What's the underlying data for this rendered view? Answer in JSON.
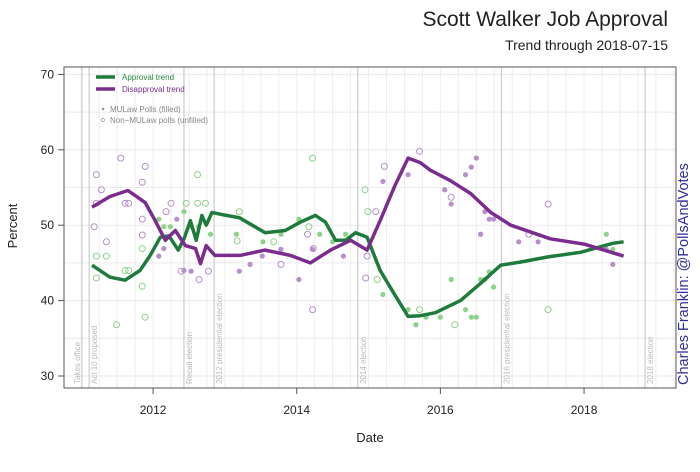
{
  "chart_data": {
    "type": "line",
    "title": "Scott Walker Job Approval",
    "subtitle": "Trend through 2018-07-15",
    "xlabel": "Date",
    "ylabel": "Percent",
    "credit": "Charles Franklin: @PollsAndVotes",
    "xlim": [
      2010.76,
      2019.28
    ],
    "ylim": [
      30,
      70
    ],
    "x_ticks": [
      2012,
      2014,
      2016,
      2018
    ],
    "x_tick_labels": [
      "2012",
      "2014",
      "2016",
      "2018"
    ],
    "y_ticks": [
      30,
      40,
      50,
      60,
      70
    ],
    "y_tick_labels": [
      "30",
      "40",
      "50",
      "60",
      "70"
    ],
    "grid": true,
    "legend_position": "top-left",
    "legend": {
      "approval": "Approval trend",
      "disapproval": "Disapproval trend",
      "filled": "MULaw Polls (filled)",
      "unfilled": "Non−MULaw polls (unfilled)"
    },
    "colors": {
      "approval": "#1e7b3c",
      "disapproval": "#7b2d8e",
      "approval_point": "#8fd18a",
      "disapproval_point": "#b68fcc",
      "credit": "#2e2e9e"
    },
    "events": [
      {
        "x": 2011.01,
        "label": "Takes office"
      },
      {
        "x": 2011.11,
        "label": "Act 10 proposed"
      },
      {
        "x": 2012.43,
        "label": "Recall election"
      },
      {
        "x": 2012.85,
        "label": "2012 presidential election"
      },
      {
        "x": 2014.85,
        "label": "2014 election"
      },
      {
        "x": 2016.85,
        "label": "2016 presidential election"
      },
      {
        "x": 2018.85,
        "label": "2018 election"
      }
    ],
    "series": [
      {
        "name": "Approval trend",
        "x": [
          2011.15,
          2011.4,
          2011.61,
          2011.82,
          2011.96,
          2012.1,
          2012.22,
          2012.35,
          2012.43,
          2012.52,
          2012.6,
          2012.68,
          2012.74,
          2012.82,
          2012.96,
          2013.2,
          2013.56,
          2013.84,
          2014.05,
          2014.26,
          2014.4,
          2014.54,
          2014.68,
          2014.82,
          2014.98,
          2015.16,
          2015.37,
          2015.55,
          2015.72,
          2015.93,
          2016.28,
          2016.56,
          2016.84,
          2017.11,
          2017.5,
          2017.95,
          2018.4,
          2018.55
        ],
        "y": [
          44.7,
          43.1,
          42.7,
          44,
          46,
          48.4,
          48.6,
          46.7,
          48.2,
          50.6,
          48,
          51.3,
          50,
          51.7,
          51.4,
          51,
          49,
          49.3,
          50.4,
          51.3,
          50.4,
          48,
          48,
          49,
          48.4,
          44,
          40.7,
          37.9,
          38,
          38.4,
          40,
          42.3,
          44.7,
          45.1,
          45.8,
          46.4,
          47.6,
          47.8
        ]
      },
      {
        "name": "Disapproval trend",
        "x": [
          2011.15,
          2011.4,
          2011.65,
          2011.89,
          2012.03,
          2012.17,
          2012.31,
          2012.45,
          2012.59,
          2012.66,
          2012.74,
          2012.86,
          2013.21,
          2013.56,
          2013.91,
          2014.19,
          2014.47,
          2014.75,
          2014.98,
          2015.16,
          2015.37,
          2015.55,
          2015.72,
          2015.86,
          2016.14,
          2016.42,
          2016.7,
          2016.98,
          2017.53,
          2018.0,
          2018.55
        ],
        "y": [
          52.4,
          53.8,
          54.6,
          53,
          50.6,
          48,
          49.3,
          47.3,
          46.9,
          44.9,
          47.3,
          46,
          46,
          46.7,
          46,
          45,
          46.7,
          48,
          46.7,
          50.6,
          55.3,
          58.9,
          58.3,
          57.3,
          55.9,
          54.2,
          51.7,
          50,
          48.2,
          47.5,
          45.9
        ]
      }
    ],
    "points": [
      {
        "series": "disapproval",
        "filled": false,
        "x": 2011.55,
        "y": 58.9
      },
      {
        "series": "disapproval",
        "filled": false,
        "x": 2011.89,
        "y": 57.8
      },
      {
        "series": "disapproval",
        "filled": false,
        "x": 2011.85,
        "y": 55.7
      },
      {
        "series": "disapproval",
        "filled": false,
        "x": 2011.21,
        "y": 56.7
      },
      {
        "series": "disapproval",
        "filled": false,
        "x": 2011.28,
        "y": 54.7
      },
      {
        "series": "disapproval",
        "filled": false,
        "x": 2011.21,
        "y": 52.9
      },
      {
        "series": "disapproval",
        "filled": false,
        "x": 2011.61,
        "y": 52.9
      },
      {
        "series": "disapproval",
        "filled": false,
        "x": 2011.66,
        "y": 52.9
      },
      {
        "series": "disapproval",
        "filled": false,
        "x": 2011.18,
        "y": 49.8
      },
      {
        "series": "disapproval",
        "filled": false,
        "x": 2011.35,
        "y": 47.8
      },
      {
        "series": "disapproval",
        "filled": false,
        "x": 2011.85,
        "y": 50.8
      },
      {
        "series": "disapproval",
        "filled": false,
        "x": 2011.85,
        "y": 48.7
      },
      {
        "series": "disapproval",
        "filled": false,
        "x": 2012.18,
        "y": 51.8
      },
      {
        "series": "disapproval",
        "filled": false,
        "x": 2012.25,
        "y": 52.9
      },
      {
        "series": "disapproval",
        "filled": false,
        "x": 2012.39,
        "y": 43.9
      },
      {
        "series": "disapproval",
        "filled": false,
        "x": 2012.64,
        "y": 42.8
      },
      {
        "series": "disapproval",
        "filled": false,
        "x": 2012.77,
        "y": 43.9
      },
      {
        "series": "disapproval",
        "filled": false,
        "x": 2013.78,
        "y": 44.8
      },
      {
        "series": "disapproval",
        "filled": false,
        "x": 2014.22,
        "y": 38.8
      },
      {
        "series": "disapproval",
        "filled": false,
        "x": 2014.15,
        "y": 48.8
      },
      {
        "series": "disapproval",
        "filled": false,
        "x": 2014.23,
        "y": 46.9
      },
      {
        "series": "disapproval",
        "filled": false,
        "x": 2014.98,
        "y": 45.9
      },
      {
        "series": "disapproval",
        "filled": false,
        "x": 2014.96,
        "y": 43
      },
      {
        "series": "disapproval",
        "filled": false,
        "x": 2015.22,
        "y": 57.8
      },
      {
        "series": "disapproval",
        "filled": false,
        "x": 2015.71,
        "y": 59.8
      },
      {
        "series": "disapproval",
        "filled": false,
        "x": 2015.1,
        "y": 51.8
      },
      {
        "series": "disapproval",
        "filled": false,
        "x": 2016.15,
        "y": 53.7
      },
      {
        "series": "disapproval",
        "filled": false,
        "x": 2017.23,
        "y": 48.8
      },
      {
        "series": "disapproval",
        "filled": false,
        "x": 2017.5,
        "y": 52.8
      },
      {
        "series": "disapproval",
        "filled": true,
        "x": 2012.08,
        "y": 45.9
      },
      {
        "series": "disapproval",
        "filled": true,
        "x": 2012.15,
        "y": 46.9
      },
      {
        "series": "disapproval",
        "filled": true,
        "x": 2012.33,
        "y": 50.8
      },
      {
        "series": "disapproval",
        "filled": true,
        "x": 2012.43,
        "y": 44
      },
      {
        "series": "disapproval",
        "filled": true,
        "x": 2012.53,
        "y": 43.9
      },
      {
        "series": "disapproval",
        "filled": true,
        "x": 2013.2,
        "y": 43.9
      },
      {
        "series": "disapproval",
        "filled": true,
        "x": 2013.35,
        "y": 44.8
      },
      {
        "series": "disapproval",
        "filled": true,
        "x": 2013.52,
        "y": 45.9
      },
      {
        "series": "disapproval",
        "filled": true,
        "x": 2013.78,
        "y": 46.8
      },
      {
        "series": "disapproval",
        "filled": true,
        "x": 2014.03,
        "y": 42.8
      },
      {
        "series": "disapproval",
        "filled": true,
        "x": 2014.65,
        "y": 45.9
      },
      {
        "series": "disapproval",
        "filled": true,
        "x": 2014.22,
        "y": 46.8
      },
      {
        "series": "disapproval",
        "filled": true,
        "x": 2015.2,
        "y": 55.8
      },
      {
        "series": "disapproval",
        "filled": true,
        "x": 2015.55,
        "y": 56.7
      },
      {
        "series": "disapproval",
        "filled": true,
        "x": 2016.35,
        "y": 56.7
      },
      {
        "series": "disapproval",
        "filled": true,
        "x": 2016.43,
        "y": 57.7
      },
      {
        "series": "disapproval",
        "filled": true,
        "x": 2016.5,
        "y": 58.9
      },
      {
        "series": "disapproval",
        "filled": true,
        "x": 2016.06,
        "y": 54.7
      },
      {
        "series": "disapproval",
        "filled": true,
        "x": 2016.15,
        "y": 52.8
      },
      {
        "series": "disapproval",
        "filled": true,
        "x": 2016.62,
        "y": 51.8
      },
      {
        "series": "disapproval",
        "filled": true,
        "x": 2016.68,
        "y": 50.8
      },
      {
        "series": "disapproval",
        "filled": true,
        "x": 2016.74,
        "y": 50.8
      },
      {
        "series": "disapproval",
        "filled": true,
        "x": 2016.56,
        "y": 48.8
      },
      {
        "series": "disapproval",
        "filled": true,
        "x": 2017.09,
        "y": 47.8
      },
      {
        "series": "disapproval",
        "filled": true,
        "x": 2017.36,
        "y": 47.8
      },
      {
        "series": "disapproval",
        "filled": true,
        "x": 2018.31,
        "y": 46.8
      },
      {
        "series": "disapproval",
        "filled": true,
        "x": 2018.4,
        "y": 44.8
      },
      {
        "series": "approval",
        "filled": false,
        "x": 2011.21,
        "y": 45.9
      },
      {
        "series": "approval",
        "filled": false,
        "x": 2011.35,
        "y": 45.9
      },
      {
        "series": "approval",
        "filled": false,
        "x": 2011.21,
        "y": 43
      },
      {
        "series": "approval",
        "filled": false,
        "x": 2011.61,
        "y": 44
      },
      {
        "series": "approval",
        "filled": false,
        "x": 2011.66,
        "y": 44
      },
      {
        "series": "approval",
        "filled": false,
        "x": 2011.85,
        "y": 41.9
      },
      {
        "series": "approval",
        "filled": false,
        "x": 2011.89,
        "y": 37.8
      },
      {
        "series": "approval",
        "filled": false,
        "x": 2011.85,
        "y": 46.9
      },
      {
        "series": "approval",
        "filled": false,
        "x": 2011.49,
        "y": 36.8
      },
      {
        "series": "approval",
        "filled": false,
        "x": 2012.62,
        "y": 56.7
      },
      {
        "series": "approval",
        "filled": false,
        "x": 2012.46,
        "y": 52.9
      },
      {
        "series": "approval",
        "filled": false,
        "x": 2012.62,
        "y": 52.9
      },
      {
        "series": "approval",
        "filled": false,
        "x": 2012.73,
        "y": 52.9
      },
      {
        "series": "approval",
        "filled": false,
        "x": 2013.2,
        "y": 51.8
      },
      {
        "series": "approval",
        "filled": false,
        "x": 2013.17,
        "y": 47.9
      },
      {
        "series": "approval",
        "filled": false,
        "x": 2013.68,
        "y": 47.8
      },
      {
        "series": "approval",
        "filled": false,
        "x": 2014.22,
        "y": 58.9
      },
      {
        "series": "approval",
        "filled": false,
        "x": 2014.17,
        "y": 49.8
      },
      {
        "series": "approval",
        "filled": false,
        "x": 2014.95,
        "y": 54.7
      },
      {
        "series": "approval",
        "filled": false,
        "x": 2014.99,
        "y": 51.8
      },
      {
        "series": "approval",
        "filled": false,
        "x": 2015.12,
        "y": 42.8
      },
      {
        "series": "approval",
        "filled": false,
        "x": 2015.71,
        "y": 38.8
      },
      {
        "series": "approval",
        "filled": false,
        "x": 2016.2,
        "y": 36.8
      },
      {
        "series": "approval",
        "filled": false,
        "x": 2017.5,
        "y": 38.8
      },
      {
        "series": "approval",
        "filled": true,
        "x": 2012.08,
        "y": 50.8
      },
      {
        "series": "approval",
        "filled": true,
        "x": 2012.15,
        "y": 49.8
      },
      {
        "series": "approval",
        "filled": true,
        "x": 2012.24,
        "y": 49.8
      },
      {
        "series": "approval",
        "filled": true,
        "x": 2012.43,
        "y": 51.8
      },
      {
        "series": "approval",
        "filled": true,
        "x": 2012.53,
        "y": 49.8
      },
      {
        "series": "approval",
        "filled": true,
        "x": 2012.63,
        "y": 49.8
      },
      {
        "series": "approval",
        "filled": true,
        "x": 2012.8,
        "y": 48.8
      },
      {
        "series": "approval",
        "filled": true,
        "x": 2013.16,
        "y": 48.8
      },
      {
        "series": "approval",
        "filled": true,
        "x": 2013.53,
        "y": 47.8
      },
      {
        "series": "approval",
        "filled": true,
        "x": 2013.78,
        "y": 48.8
      },
      {
        "series": "approval",
        "filled": true,
        "x": 2014.03,
        "y": 50.8
      },
      {
        "series": "approval",
        "filled": true,
        "x": 2014.32,
        "y": 48.8
      },
      {
        "series": "approval",
        "filled": true,
        "x": 2014.5,
        "y": 47.8
      },
      {
        "series": "approval",
        "filled": true,
        "x": 2014.68,
        "y": 48.8
      },
      {
        "series": "approval",
        "filled": true,
        "x": 2015.2,
        "y": 40.8
      },
      {
        "series": "approval",
        "filled": true,
        "x": 2015.55,
        "y": 38.8
      },
      {
        "series": "approval",
        "filled": true,
        "x": 2015.66,
        "y": 36.8
      },
      {
        "series": "approval",
        "filled": true,
        "x": 2015.8,
        "y": 37.8
      },
      {
        "series": "approval",
        "filled": true,
        "x": 2016.0,
        "y": 37.8
      },
      {
        "series": "approval",
        "filled": true,
        "x": 2016.15,
        "y": 42.8
      },
      {
        "series": "approval",
        "filled": true,
        "x": 2016.35,
        "y": 38.8
      },
      {
        "series": "approval",
        "filled": true,
        "x": 2016.43,
        "y": 37.8
      },
      {
        "series": "approval",
        "filled": true,
        "x": 2016.5,
        "y": 37.8
      },
      {
        "series": "approval",
        "filled": true,
        "x": 2016.56,
        "y": 42.8
      },
      {
        "series": "approval",
        "filled": true,
        "x": 2016.62,
        "y": 42.8
      },
      {
        "series": "approval",
        "filled": true,
        "x": 2016.68,
        "y": 43.8
      },
      {
        "series": "approval",
        "filled": true,
        "x": 2016.74,
        "y": 41.8
      },
      {
        "series": "approval",
        "filled": true,
        "x": 2018.31,
        "y": 48.8
      },
      {
        "series": "approval",
        "filled": true,
        "x": 2018.4,
        "y": 46.8
      }
    ]
  }
}
